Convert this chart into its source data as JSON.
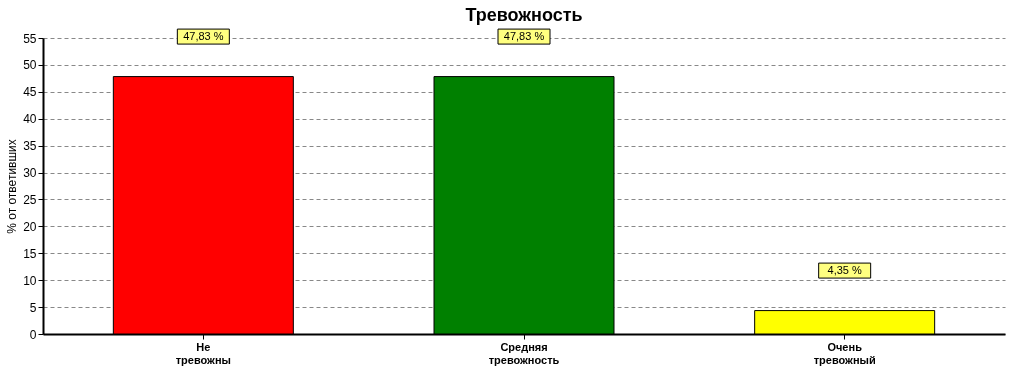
{
  "chart_data": {
    "type": "bar",
    "title": "Тревожность",
    "ylabel": "% от ответивших",
    "categories": [
      "Не тревожны",
      "Средняя тревожность",
      "Очень тревожный"
    ],
    "values": [
      47.83,
      47.83,
      4.35
    ],
    "colors": [
      "#ff0000",
      "#008000",
      "#ffff00"
    ],
    "value_labels": [
      "47,83 %",
      "47,83 %",
      "4,35 %"
    ],
    "ylim": [
      0,
      55
    ],
    "yticks": [
      0,
      5,
      10,
      15,
      20,
      25,
      30,
      35,
      40,
      45,
      50,
      55
    ],
    "grid": "y"
  }
}
